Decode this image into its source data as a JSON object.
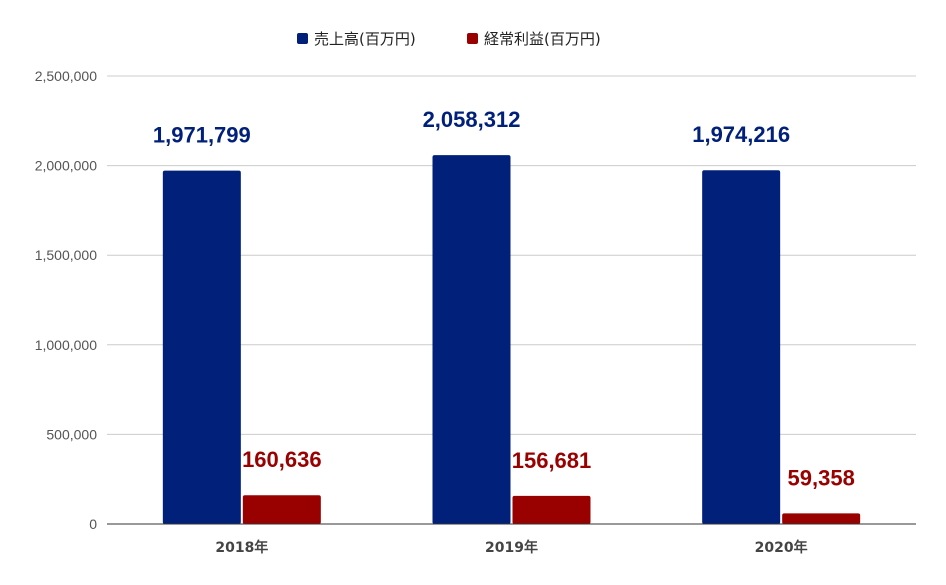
{
  "chart_data": {
    "type": "bar",
    "title": "",
    "xlabel": "",
    "ylabel": "",
    "categories": [
      "2018年",
      "2019年",
      "2020年"
    ],
    "series": [
      {
        "name": "売上高(百万円)",
        "values": [
          1971799,
          2058312,
          1974216
        ],
        "labels": [
          "1,971,799",
          "2,058,312",
          "1,974,216"
        ],
        "color": "#00207a"
      },
      {
        "name": "経常利益(百万円)",
        "values": [
          160636,
          156681,
          59358
        ],
        "labels": [
          "160,636",
          "156,681",
          "59,358"
        ],
        "color": "#990000"
      }
    ],
    "yticks": [
      {
        "value": 0,
        "label": "0"
      },
      {
        "value": 500000,
        "label": "500,000"
      },
      {
        "value": 1000000,
        "label": "1,000,000"
      },
      {
        "value": 1500000,
        "label": "1,500,000"
      },
      {
        "value": 2000000,
        "label": "2,000,000"
      },
      {
        "value": 2500000,
        "label": "2,500,000"
      }
    ],
    "ylim": [
      0,
      2500000
    ],
    "grid": true,
    "legend_position": "top-center",
    "colors": {
      "gridline": "#cccccc",
      "axis": "#333333",
      "tick_text": "#555555"
    }
  }
}
